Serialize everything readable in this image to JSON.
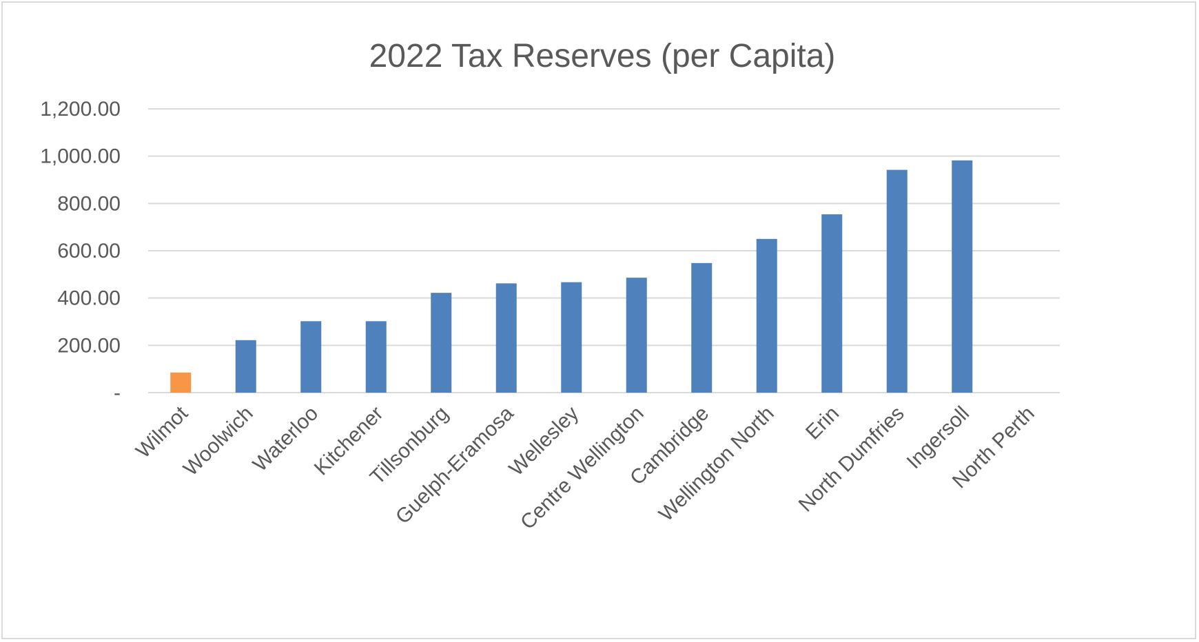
{
  "chart_data": {
    "type": "bar",
    "title": "2022 Tax Reserves (per Capita)",
    "xlabel": "",
    "ylabel": "",
    "categories": [
      "Wilmot",
      "Woolwich",
      "Waterloo",
      "Kitchener",
      "Tillsonburg",
      "Guelph-Eramosa",
      "Wellesley",
      "Centre Wellington",
      "Cambridge",
      "Wellington North",
      "Erin",
      "North Dumfries",
      "Ingersoll",
      "North Perth"
    ],
    "values": [
      85,
      222,
      302,
      302,
      422,
      462,
      467,
      486,
      548,
      650,
      754,
      942,
      982,
      0
    ],
    "ylim": [
      0,
      1200
    ],
    "yticks": [
      0,
      200,
      400,
      600,
      800,
      1000,
      1200
    ],
    "ytick_labels": [
      "-",
      "200.00",
      "400.00",
      "600.00",
      "800.00",
      "1,000.00",
      "1,200.00"
    ],
    "grid": true,
    "legend": "none",
    "colors": {
      "default": "#4f81bd",
      "highlight": "#f79646",
      "highlight_category": "Wilmot",
      "grid": "#d9d9d9",
      "text": "#595959"
    }
  }
}
